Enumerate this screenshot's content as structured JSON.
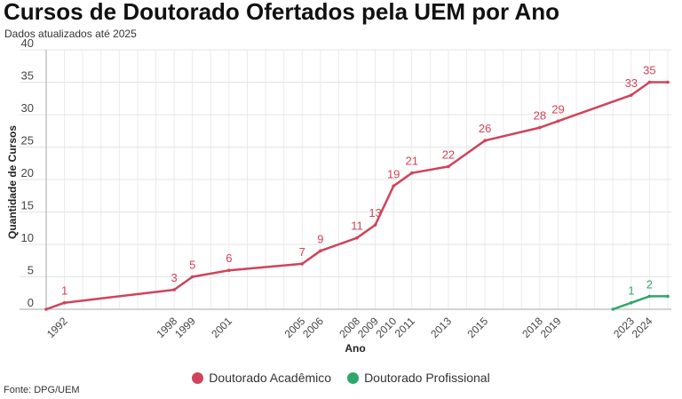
{
  "header": {
    "title": "Cursos de Doutorado Ofertados pela UEM por Ano",
    "subtitle": "Dados atualizados até 2025"
  },
  "footer": {
    "source": "Fonte: DPG/UEM"
  },
  "chart_data": {
    "type": "line",
    "title": "Cursos de Doutorado Ofertados pela UEM por Ano",
    "xlabel": "Ano",
    "ylabel": "Quantidade de Cursos",
    "xlim": [
      1991,
      2025
    ],
    "ylim": [
      0,
      40
    ],
    "yticks": [
      0,
      5,
      10,
      15,
      20,
      25,
      30,
      35,
      40
    ],
    "xticks": [
      1992,
      1998,
      1999,
      2001,
      2005,
      2006,
      2008,
      2009,
      2010,
      2011,
      2013,
      2015,
      2018,
      2019,
      2023,
      2024
    ],
    "grid": true,
    "legend": "bottom",
    "series": [
      {
        "name": "Doutorado Acadêmico",
        "color": "#d0435a",
        "x": [
          1991,
          1992,
          1998,
          1999,
          2001,
          2005,
          2006,
          2008,
          2009,
          2010,
          2011,
          2013,
          2015,
          2018,
          2019,
          2023,
          2024,
          2025
        ],
        "y": [
          0,
          1,
          3,
          5,
          6,
          7,
          9,
          11,
          13,
          19,
          21,
          22,
          26,
          28,
          29,
          33,
          35,
          35
        ],
        "labels": [
          null,
          "1",
          "3",
          "5",
          "6",
          "7",
          "9",
          "11",
          "13",
          "19",
          "21",
          "22",
          "26",
          "28",
          "29",
          "33",
          "35",
          null
        ]
      },
      {
        "name": "Doutorado Profissional",
        "color": "#2ea86a",
        "x": [
          2022,
          2023,
          2024,
          2025
        ],
        "y": [
          0,
          1,
          2,
          2
        ],
        "labels": [
          null,
          "1",
          "2",
          null
        ]
      }
    ]
  }
}
